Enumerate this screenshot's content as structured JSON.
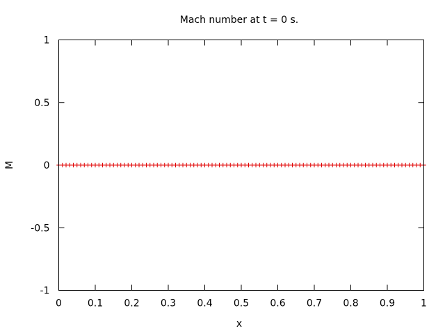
{
  "chart_data": {
    "type": "scatter",
    "title": "Mach number at t = 0 s.",
    "xlabel": "x",
    "ylabel": "M",
    "xlim": [
      0,
      1
    ],
    "ylim": [
      -1,
      1
    ],
    "x_ticks": [
      0,
      0.1,
      0.2,
      0.3,
      0.4,
      0.5,
      0.6,
      0.7,
      0.8,
      0.9,
      1
    ],
    "x_tick_labels": [
      "0",
      "0.1",
      "0.2",
      "0.3",
      "0.4",
      "0.5",
      "0.6",
      "0.7",
      "0.8",
      "0.9",
      "1"
    ],
    "y_ticks": [
      1,
      0.5,
      0,
      -0.5,
      -1
    ],
    "y_tick_labels": [
      "1",
      "0.5",
      "0",
      "-0.5",
      "-1"
    ],
    "grid": false,
    "series": [
      {
        "marker": "plus",
        "color": "#e00000",
        "x": [
          0,
          0.01,
          0.02,
          0.03,
          0.04,
          0.05,
          0.06,
          0.07,
          0.08,
          0.09,
          0.1,
          0.11,
          0.12,
          0.13,
          0.14,
          0.15,
          0.16,
          0.17,
          0.18,
          0.19,
          0.2,
          0.21,
          0.22,
          0.23,
          0.24,
          0.25,
          0.26,
          0.27,
          0.28,
          0.29,
          0.3,
          0.31,
          0.32,
          0.33,
          0.34,
          0.35,
          0.36,
          0.37,
          0.38,
          0.39,
          0.4,
          0.41,
          0.42,
          0.43,
          0.44,
          0.45,
          0.46,
          0.47,
          0.48,
          0.49,
          0.5,
          0.51,
          0.52,
          0.53,
          0.54,
          0.55,
          0.56,
          0.57,
          0.58,
          0.59,
          0.6,
          0.61,
          0.62,
          0.63,
          0.64,
          0.65,
          0.66,
          0.67,
          0.68,
          0.69,
          0.7,
          0.71,
          0.72,
          0.73,
          0.74,
          0.75,
          0.76,
          0.77,
          0.78,
          0.79,
          0.8,
          0.81,
          0.82,
          0.83,
          0.84,
          0.85,
          0.86,
          0.87,
          0.88,
          0.89,
          0.9,
          0.91,
          0.92,
          0.93,
          0.94,
          0.95,
          0.96,
          0.97,
          0.98,
          0.99,
          1
        ],
        "y": [
          0,
          0,
          0,
          0,
          0,
          0,
          0,
          0,
          0,
          0,
          0,
          0,
          0,
          0,
          0,
          0,
          0,
          0,
          0,
          0,
          0,
          0,
          0,
          0,
          0,
          0,
          0,
          0,
          0,
          0,
          0,
          0,
          0,
          0,
          0,
          0,
          0,
          0,
          0,
          0,
          0,
          0,
          0,
          0,
          0,
          0,
          0,
          0,
          0,
          0,
          0,
          0,
          0,
          0,
          0,
          0,
          0,
          0,
          0,
          0,
          0,
          0,
          0,
          0,
          0,
          0,
          0,
          0,
          0,
          0,
          0,
          0,
          0,
          0,
          0,
          0,
          0,
          0,
          0,
          0,
          0,
          0,
          0,
          0,
          0,
          0,
          0,
          0,
          0,
          0,
          0,
          0,
          0,
          0,
          0,
          0,
          0,
          0,
          0,
          0,
          0
        ]
      }
    ]
  }
}
